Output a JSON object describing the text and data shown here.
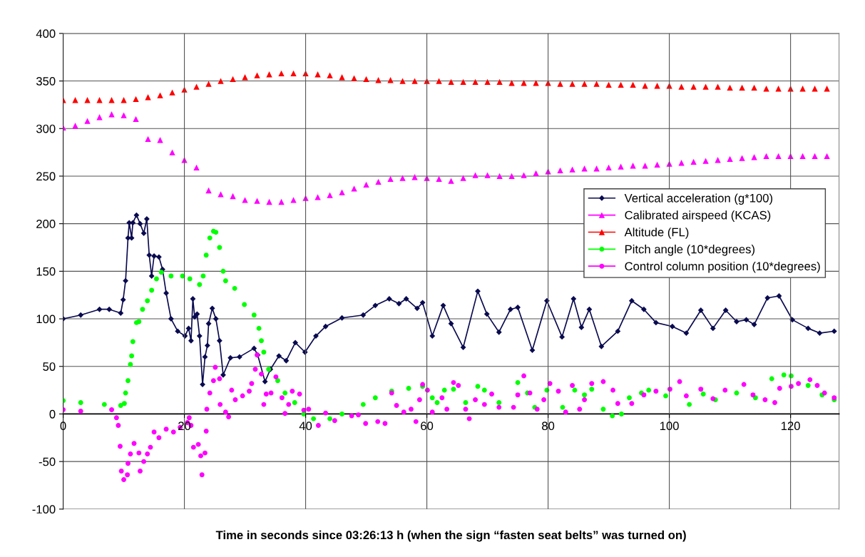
{
  "chart_data": {
    "type": "line",
    "xlabel": "Time in seconds since 03:26:13 h (when the sign “fasten seat belts” was turned on)",
    "xlim": [
      0,
      128
    ],
    "xticks": [
      0,
      20,
      40,
      60,
      80,
      100,
      120
    ],
    "ylim": [
      -100,
      400
    ],
    "yticks": [
      -100,
      -50,
      0,
      50,
      100,
      150,
      200,
      250,
      300,
      350,
      400
    ],
    "grid": true,
    "legend": "right",
    "series": [
      {
        "name": "Vertical acceleration (g*100)",
        "color": "#0a0a50",
        "marker": "diamond",
        "line_style": "solid",
        "x": [
          0,
          2.9,
          6,
          7.6,
          9.5,
          9.9,
          10.3,
          10.7,
          10.9,
          11.3,
          11.5,
          12.1,
          12.7,
          13.3,
          13.8,
          14.2,
          14.6,
          15,
          15.8,
          16.4,
          17,
          17.8,
          18.9,
          20.1,
          20.7,
          21.1,
          21.4,
          21.7,
          22.1,
          22.5,
          23,
          23.4,
          23.8,
          24,
          24.6,
          25.2,
          25.8,
          26.4,
          27.6,
          29.1,
          31.5,
          32.1,
          33.3,
          34.2,
          35.6,
          36.8,
          38.3,
          39.9,
          41.7,
          43.3,
          46,
          49.5,
          51.5,
          53.8,
          55.4,
          56.6,
          58.4,
          59.3,
          60.9,
          62.7,
          64,
          66,
          68.4,
          69.9,
          71.9,
          73.8,
          75,
          77.4,
          79.8,
          82.3,
          84.2,
          85.5,
          86.8,
          88.8,
          91.5,
          93.8,
          95.8,
          97.8,
          100.5,
          102.8,
          105.2,
          107.2,
          109.3,
          111.1,
          112.7,
          114,
          116.2,
          118.1,
          120.3,
          122.9,
          124.8,
          127.2
        ],
        "values": [
          100,
          104,
          110,
          110,
          106,
          120,
          140,
          185,
          201,
          185,
          201,
          209,
          200,
          190,
          205,
          167,
          145,
          166,
          165,
          152,
          127,
          100,
          87,
          82,
          90,
          77,
          121,
          102,
          105,
          82,
          31,
          60,
          72,
          95,
          111,
          100,
          77,
          41,
          59,
          60,
          69,
          62,
          34,
          47,
          61,
          56,
          75,
          65,
          82,
          92,
          101,
          104,
          114,
          121,
          116,
          121,
          111,
          117,
          82,
          114,
          95,
          70,
          129,
          105,
          86,
          110,
          112,
          67,
          119,
          81,
          121,
          91,
          110,
          71,
          87,
          119,
          110,
          96,
          92,
          85,
          109,
          90,
          109,
          97,
          99,
          94,
          122,
          124,
          99,
          90,
          85,
          87
        ]
      },
      {
        "name": "Calibrated airspeed (KCAS)",
        "type": "scatter",
        "color": "#ff00ff",
        "marker": "triangle",
        "x": [
          0,
          2,
          4,
          6,
          8,
          10,
          12,
          14,
          16,
          18,
          20,
          22,
          24,
          26,
          28,
          30,
          32,
          34,
          36,
          38,
          40,
          42,
          44,
          46,
          48,
          50,
          52,
          54,
          56,
          58,
          60,
          62,
          64,
          66,
          68,
          70,
          72,
          74,
          76,
          78,
          80,
          82,
          84,
          86,
          88,
          90,
          92,
          94,
          96,
          98,
          100,
          102,
          104,
          106,
          108,
          110,
          112,
          114,
          116,
          118,
          120,
          122,
          124,
          126
        ],
        "values": [
          301,
          303,
          308,
          312,
          315,
          314,
          310,
          289,
          288,
          275,
          267,
          259,
          235,
          231,
          229,
          225,
          224,
          223,
          223,
          225,
          227,
          228,
          230,
          233,
          237,
          241,
          244,
          247,
          248,
          249,
          248,
          247,
          245,
          248,
          251,
          251,
          250,
          250,
          251,
          253,
          255,
          256,
          257,
          258,
          258,
          259,
          260,
          261,
          261,
          262,
          263,
          264,
          265,
          266,
          267,
          268,
          269,
          270,
          271,
          271,
          271,
          271,
          271,
          271
        ]
      },
      {
        "name": "Altitude (FL)",
        "type": "scatter",
        "color": "#ff0000",
        "marker": "triangle",
        "x": [
          0,
          2,
          4,
          6,
          8,
          10,
          12,
          14,
          16,
          18,
          20,
          22,
          24,
          26,
          28,
          30,
          32,
          34,
          36,
          38,
          40,
          42,
          44,
          46,
          48,
          50,
          52,
          54,
          56,
          58,
          60,
          62,
          64,
          66,
          68,
          70,
          72,
          74,
          76,
          78,
          80,
          82,
          84,
          86,
          88,
          90,
          92,
          94,
          96,
          98,
          100,
          102,
          104,
          106,
          108,
          110,
          112,
          114,
          116,
          118,
          120,
          122,
          124,
          126
        ],
        "values": [
          330,
          330,
          330,
          330,
          330,
          330,
          331,
          333,
          335,
          338,
          341,
          344,
          347,
          350,
          352,
          354,
          356,
          357,
          358,
          358,
          358,
          357,
          356,
          354,
          353,
          352,
          351,
          351,
          350,
          350,
          350,
          350,
          349,
          349,
          349,
          349,
          349,
          348,
          348,
          348,
          348,
          347,
          347,
          347,
          347,
          346,
          346,
          346,
          345,
          345,
          345,
          344,
          344,
          344,
          344,
          343,
          343,
          343,
          342,
          342,
          342,
          342,
          342,
          342
        ]
      },
      {
        "name": "Pitch angle (10*degrees)",
        "type": "scatter",
        "color": "#00ff00",
        "marker": "circle",
        "x": [
          0,
          2.9,
          6.8,
          9.5,
          10.1,
          10.3,
          10.7,
          11.1,
          11.3,
          11.5,
          12.1,
          12.5,
          13.1,
          13.9,
          14.6,
          15.4,
          16.2,
          17.8,
          19.7,
          20.9,
          22.5,
          23.1,
          23.6,
          24.2,
          24.8,
          25.2,
          25.8,
          26.4,
          26.8,
          28.3,
          29.9,
          31.5,
          32.3,
          32.7,
          33.1,
          33.9,
          35.4,
          36.6,
          38.2,
          39.7,
          41.3,
          44,
          46,
          49.5,
          51.5,
          54.2,
          57,
          59.3,
          60.9,
          61.7,
          62.9,
          64.4,
          66.4,
          68.4,
          69.5,
          71.9,
          75,
          76.6,
          77.8,
          79.8,
          82.4,
          84.4,
          86,
          87.2,
          89.1,
          90.6,
          92.1,
          93.4,
          95.4,
          96.6,
          99.4,
          103.3,
          105.6,
          107.6,
          111.1,
          114.2,
          116.9,
          118.9,
          120.1,
          122.9,
          125.2,
          127.2
        ],
        "values": [
          14,
          12,
          10,
          9,
          11,
          22,
          35,
          52,
          61,
          76,
          96,
          97,
          110,
          119,
          130,
          142,
          149,
          145,
          145,
          142,
          136,
          145,
          167,
          185,
          192,
          191,
          175,
          150,
          140,
          132,
          115,
          104,
          90,
          77,
          65,
          47,
          35,
          22,
          12,
          0,
          -5,
          -5,
          0,
          10,
          17,
          24,
          27,
          29,
          17,
          12,
          25,
          26,
          12,
          29,
          25,
          12,
          33,
          22,
          7,
          25,
          7,
          25,
          20,
          26,
          5,
          -2,
          0,
          17,
          22,
          25,
          19,
          10,
          21,
          15,
          22,
          17,
          37,
          41,
          40,
          30,
          20,
          15
        ]
      },
      {
        "name": "Control column position (10*degrees)",
        "type": "scatter",
        "color": "#ff00ff",
        "marker": "circle",
        "x": [
          0,
          2.9,
          8,
          8.8,
          9.1,
          9.4,
          9.6,
          10,
          10.6,
          10.7,
          11.1,
          11.7,
          12.5,
          12.7,
          13.3,
          13.9,
          14.4,
          15,
          15.8,
          17,
          18.2,
          19.3,
          20.5,
          20.8,
          21.1,
          21.5,
          22.3,
          22.7,
          22.9,
          23.4,
          23.6,
          23.7,
          24.2,
          24.8,
          25.1,
          25.8,
          25.9,
          26.8,
          27.3,
          27.8,
          28.4,
          29.6,
          30.7,
          31.1,
          31.7,
          32,
          32.7,
          33.1,
          33.5,
          34.3,
          35.1,
          36.1,
          36.6,
          37.2,
          37.8,
          39,
          39.7,
          40.5,
          42.1,
          43.3,
          44.8,
          47.6,
          48.7,
          49.9,
          51.9,
          53.1,
          54.2,
          55,
          56.2,
          57.4,
          58.2,
          58.8,
          59.3,
          60.1,
          60.9,
          62.5,
          63.3,
          64.4,
          65.2,
          66.4,
          67,
          68,
          69.5,
          70.7,
          71.9,
          74.3,
          75,
          76,
          77,
          78.2,
          79.3,
          80.3,
          81.7,
          82.9,
          84,
          85.2,
          86,
          87.2,
          89.1,
          90.7,
          91.5,
          93.8,
          95.8,
          97.8,
          100.1,
          101.7,
          102.8,
          105.2,
          107.2,
          109.2,
          112.3,
          113.8,
          115.8,
          117.4,
          118.2,
          120.1,
          121.3,
          123.2,
          124.4,
          125.6,
          127.2
        ],
        "values": [
          4.5,
          3,
          4.5,
          -4,
          -12,
          -34,
          -60,
          -69,
          -64,
          -52,
          -42,
          -31,
          -41,
          -60,
          -50,
          -42,
          -35,
          -19,
          -25,
          -16,
          -19,
          -14,
          -9,
          -4,
          -12,
          -35,
          -32,
          -44,
          -64,
          -41,
          -18,
          5,
          22,
          35,
          49,
          37,
          10,
          2,
          -3,
          25,
          15,
          19,
          24,
          32,
          47,
          62,
          42,
          10,
          21,
          22,
          39,
          17,
          0.5,
          10,
          24,
          21,
          4,
          5,
          -12,
          1,
          -7,
          -2,
          -1,
          -10,
          -8,
          -10,
          22,
          9,
          2,
          5,
          -8,
          15,
          31,
          25,
          2,
          17,
          5,
          33,
          30,
          5,
          -5,
          15,
          10,
          21,
          7,
          7,
          20,
          40,
          22,
          5,
          15,
          32,
          24,
          2,
          30,
          5,
          15,
          32,
          34,
          25,
          11,
          11,
          20,
          24,
          26,
          34,
          19,
          26,
          16,
          25,
          31,
          20,
          15,
          12,
          27,
          29,
          32,
          36,
          30,
          22,
          17
        ]
      }
    ]
  }
}
